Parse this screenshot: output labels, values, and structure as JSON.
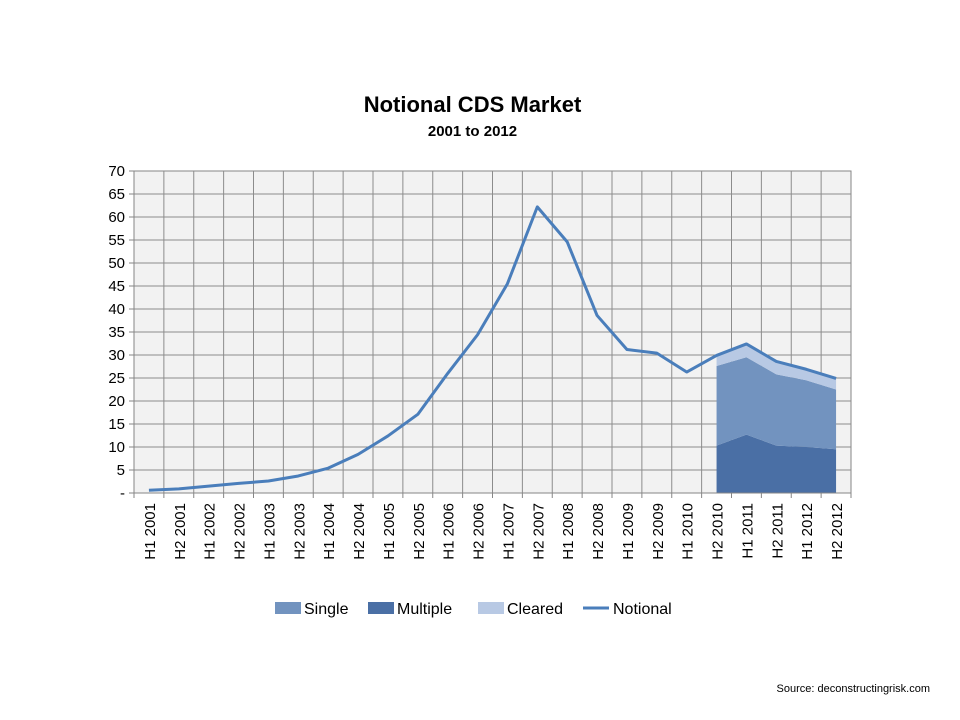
{
  "chart_data": {
    "type": "area",
    "title": "Notional CDS Market",
    "subtitle": "2001 to 2012",
    "categories": [
      "H1 2001",
      "H2 2001",
      "H1 2002",
      "H2 2002",
      "H1 2003",
      "H2 2003",
      "H1 2004",
      "H2 2004",
      "H1 2005",
      "H2 2005",
      "H1 2006",
      "H2 2006",
      "H1 2007",
      "H2 2007",
      "H1 2008",
      "H2 2008",
      "H1 2009",
      "H2 2009",
      "H1 2010",
      "H2 2010",
      "H1 2011",
      "H2 2011",
      "H1 2012",
      "H2 2012"
    ],
    "ylim": [
      0,
      70
    ],
    "yticks": [
      0,
      5,
      10,
      15,
      20,
      25,
      30,
      35,
      40,
      45,
      50,
      55,
      60,
      65,
      70
    ],
    "ytick_labels": [
      "-",
      "5",
      "10",
      "15",
      "20",
      "25",
      "30",
      "35",
      "40",
      "45",
      "50",
      "55",
      "60",
      "65",
      "70"
    ],
    "grid": true,
    "legend_position": "bottom",
    "stacked_areas": [
      {
        "name": "Multiple",
        "color": "#4a6fa5",
        "values": [
          null,
          null,
          null,
          null,
          null,
          null,
          null,
          null,
          null,
          null,
          null,
          null,
          null,
          null,
          null,
          null,
          null,
          null,
          null,
          10.3,
          12.7,
          10.3,
          10.0,
          9.5
        ]
      },
      {
        "name": "Single",
        "color": "#7293bf",
        "values": [
          null,
          null,
          null,
          null,
          null,
          null,
          null,
          null,
          null,
          null,
          null,
          null,
          null,
          null,
          null,
          null,
          null,
          null,
          null,
          17.3,
          16.8,
          15.5,
          14.5,
          13.0
        ]
      },
      {
        "name": "Cleared",
        "color": "#b8c9e4",
        "values": [
          null,
          null,
          null,
          null,
          null,
          null,
          null,
          null,
          null,
          null,
          null,
          null,
          null,
          null,
          null,
          null,
          null,
          null,
          null,
          2.3,
          2.8,
          2.6,
          2.5,
          2.4
        ]
      }
    ],
    "line": {
      "name": "Notional",
      "color": "#4a7ebb",
      "values": [
        0.6,
        0.9,
        1.5,
        2.1,
        2.6,
        3.7,
        5.4,
        8.4,
        12.4,
        17.1,
        26.0,
        34.4,
        45.5,
        62.2,
        54.6,
        38.6,
        31.2,
        30.4,
        26.3,
        29.9,
        32.4,
        28.6,
        26.9,
        24.9
      ]
    },
    "legend": [
      {
        "name": "Single",
        "color": "#7293bf",
        "kind": "area"
      },
      {
        "name": "Multiple",
        "color": "#4a6fa5",
        "kind": "area"
      },
      {
        "name": "Cleared",
        "color": "#b8c9e4",
        "kind": "area"
      },
      {
        "name": "Notional",
        "color": "#4a7ebb",
        "kind": "line"
      }
    ]
  },
  "source": "Source: deconstructingrisk.com"
}
